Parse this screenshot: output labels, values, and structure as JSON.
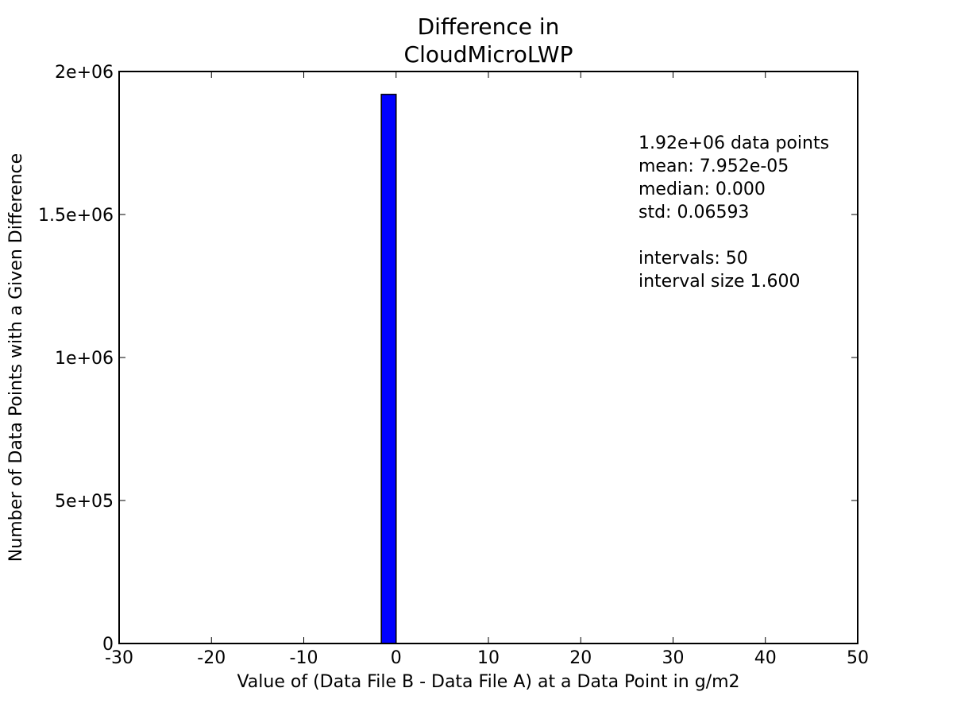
{
  "chart_data": {
    "type": "bar",
    "title_lines": [
      "Difference in",
      "CloudMicroLWP"
    ],
    "xlabel": "Value of (Data File B - Data File A) at a Data Point in g/m2",
    "ylabel": "Number of Data Points with a Given Difference",
    "xlim": [
      -30,
      50
    ],
    "ylim": [
      0,
      2000000
    ],
    "x_ticks": [
      {
        "value": -30,
        "label": "-30"
      },
      {
        "value": -20,
        "label": "-20"
      },
      {
        "value": -10,
        "label": "-10"
      },
      {
        "value": 0,
        "label": "0"
      },
      {
        "value": 10,
        "label": "10"
      },
      {
        "value": 20,
        "label": "20"
      },
      {
        "value": 30,
        "label": "30"
      },
      {
        "value": 40,
        "label": "40"
      },
      {
        "value": 50,
        "label": "50"
      }
    ],
    "y_ticks": [
      {
        "value": 0,
        "label": "0"
      },
      {
        "value": 500000,
        "label": "5e+05"
      },
      {
        "value": 1000000,
        "label": "1e+06"
      },
      {
        "value": 1500000,
        "label": "1.5e+06"
      },
      {
        "value": 2000000,
        "label": "2e+06"
      }
    ],
    "bins": [
      {
        "x0": -1.6,
        "x1": 0.0,
        "count": 1920000
      }
    ],
    "bar_color": "#0000ff",
    "grid": false,
    "stats_lines": [
      "1.92e+06 data points",
      "mean: 7.952e-05",
      "median: 0.000",
      "std: 0.06593",
      "",
      "intervals: 50",
      "interval size 1.600"
    ]
  }
}
